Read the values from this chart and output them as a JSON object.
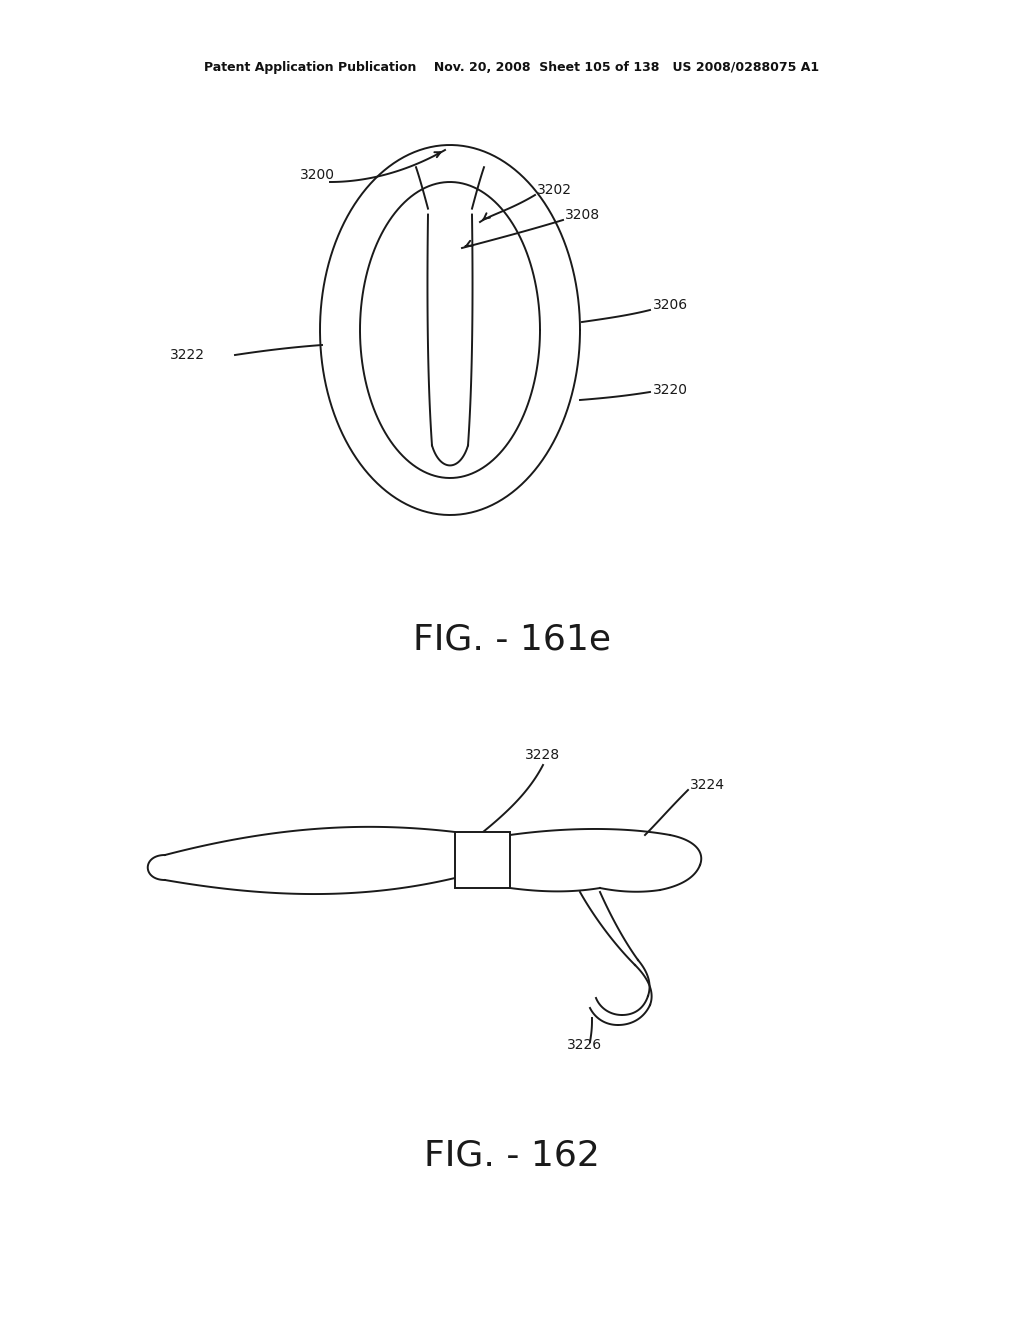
{
  "bg_color": "#ffffff",
  "line_color": "#1a1a1a",
  "header_text": "Patent Application Publication    Nov. 20, 2008  Sheet 105 of 138   US 2008/0288075 A1",
  "fig1_label": "FIG. - 161e",
  "fig2_label": "FIG. - 162"
}
